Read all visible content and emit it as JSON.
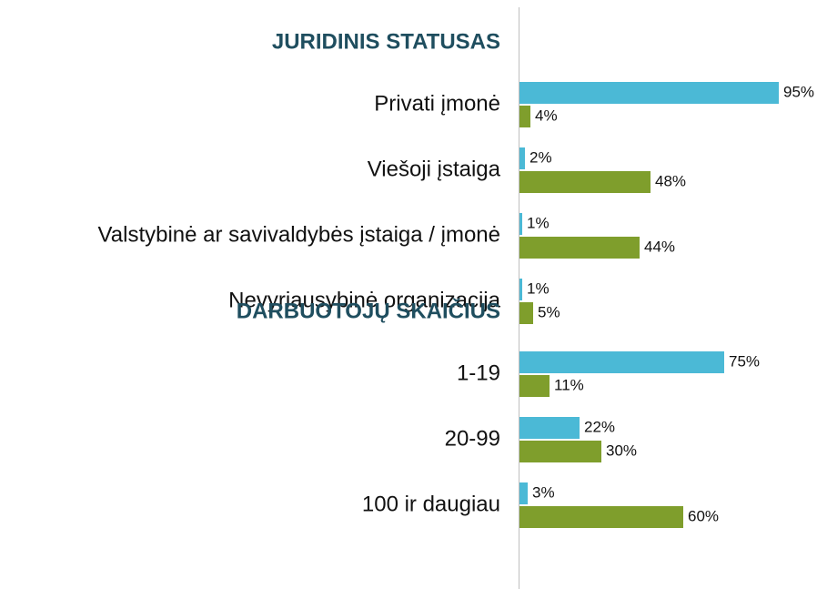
{
  "chart_data": {
    "type": "bar",
    "orientation": "horizontal",
    "xlim": [
      0,
      100
    ],
    "groups": [
      {
        "title": "JURIDINIS STATUSAS",
        "categories": [
          "Privati įmonė",
          "Viešoji įstaiga",
          "Valstybinė ar savivaldybės įstaiga / įmonė",
          "Nevyriausybinė organizacija"
        ],
        "series": [
          {
            "color": "#4bb9d6",
            "values": [
              95,
              2,
              1,
              1
            ],
            "value_labels": [
              "95%",
              "2%",
              "1%",
              "1%"
            ]
          },
          {
            "color": "#7f9e2c",
            "values": [
              4,
              48,
              44,
              5
            ],
            "value_labels": [
              "4%",
              "48%",
              "44%",
              "5%"
            ]
          }
        ]
      },
      {
        "title": "DARBUOTOJŲ SKAIČIUS",
        "categories": [
          "1-19",
          "20-99",
          "100 ir daugiau"
        ],
        "series": [
          {
            "color": "#4bb9d6",
            "values": [
              75,
              22,
              3
            ],
            "value_labels": [
              "75%",
              "22%",
              "3%"
            ]
          },
          {
            "color": "#7f9e2c",
            "values": [
              11,
              30,
              60
            ],
            "value_labels": [
              "11%",
              "30%",
              "60%"
            ]
          }
        ]
      }
    ]
  }
}
